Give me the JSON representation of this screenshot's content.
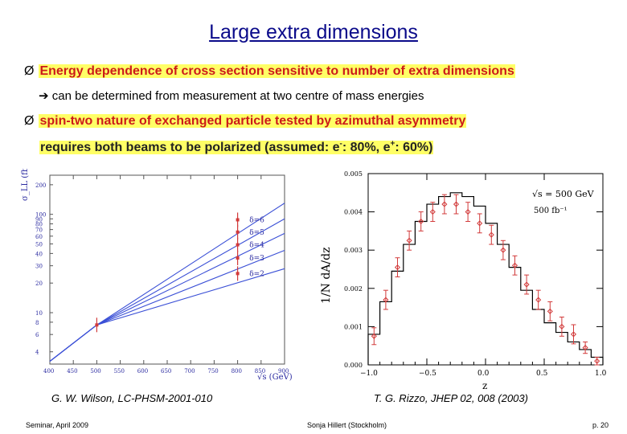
{
  "slide": {
    "title": "Large extra dimensions",
    "bullet1": "Energy dependence of cross section sensitive to number of extra dimensions",
    "arrow_line": "can be determined from measurement at two centre of mass energies",
    "bullet2": "spin-two nature of exchanged particle tested by azimuthal asymmetry",
    "requires_prefix": "requires both beams to be polarized (assumed: e",
    "requires_minus": "-",
    "requires_mid": ": 80%, e",
    "requires_plus": "+",
    "requires_suffix": ": 60%)",
    "bullet_marker": "Ø",
    "arrow_glyph": "➔"
  },
  "captions": {
    "left": "G. W. Wilson, LC-PHSM-2001-010",
    "right": "T. G. Rizzo, JHEP 02, 008 (2003)"
  },
  "footer": {
    "left": "Seminar, April 2009",
    "center": "Sonja Hillert (Stockholm)",
    "right": "p. 20"
  },
  "chart_data": [
    {
      "type": "line",
      "xlabel": "√s (GeV)",
      "ylabel": "σ_LL (fb)",
      "xlim": [
        400,
        900
      ],
      "x_ticks": [
        "400",
        "450",
        "500",
        "550",
        "600",
        "650",
        "700",
        "750",
        "800",
        "850",
        "900"
      ],
      "y_ticks": [
        "200",
        "100",
        "90",
        "80",
        "70",
        "60",
        "50",
        "40",
        "30",
        "20",
        "10",
        "8",
        "6",
        "4"
      ],
      "series": [
        {
          "name": "δ=6",
          "x": [
            400,
            500,
            900
          ],
          "y": [
            3.2,
            7.5,
            130
          ]
        },
        {
          "name": "δ=5",
          "x": [
            400,
            500,
            900
          ],
          "y": [
            3.2,
            7.5,
            90
          ]
        },
        {
          "name": "δ=4",
          "x": [
            400,
            500,
            900
          ],
          "y": [
            3.2,
            7.5,
            64
          ]
        },
        {
          "name": "δ=3",
          "x": [
            400,
            500,
            900
          ],
          "y": [
            3.2,
            7.5,
            43
          ]
        },
        {
          "name": "δ=2",
          "x": [
            400,
            500,
            900
          ],
          "y": [
            3.2,
            7.5,
            28
          ]
        }
      ],
      "markers": [
        {
          "x": 500,
          "y": 7.5
        },
        {
          "x": 800,
          "y": 88
        },
        {
          "x": 800,
          "y": 66
        },
        {
          "x": 800,
          "y": 49
        },
        {
          "x": 800,
          "y": 36
        },
        {
          "x": 800,
          "y": 25
        }
      ]
    },
    {
      "type": "scatter",
      "xlabel": "z",
      "ylabel": "1/N dA/dz",
      "xlim": [
        -1.0,
        1.0
      ],
      "ylim": [
        0,
        0.005
      ],
      "x_ticks": [
        "−1.0",
        "−0.5",
        "0.0",
        "0.5",
        "1.0"
      ],
      "y_ticks": [
        "0.000",
        "0.001",
        "0.002",
        "0.003",
        "0.004",
        "0.005"
      ],
      "annotations": [
        "√s = 500 GeV",
        "500 fb⁻¹"
      ],
      "points": [
        {
          "x": -0.95,
          "y": 0.00075,
          "err": 0.00022
        },
        {
          "x": -0.85,
          "y": 0.0017,
          "err": 0.00025
        },
        {
          "x": -0.75,
          "y": 0.00255,
          "err": 0.00025
        },
        {
          "x": -0.65,
          "y": 0.00325,
          "err": 0.00025
        },
        {
          "x": -0.55,
          "y": 0.00375,
          "err": 0.00025
        },
        {
          "x": -0.45,
          "y": 0.004,
          "err": 0.00025
        },
        {
          "x": -0.35,
          "y": 0.0042,
          "err": 0.00025
        },
        {
          "x": -0.25,
          "y": 0.0042,
          "err": 0.00025
        },
        {
          "x": -0.15,
          "y": 0.004,
          "err": 0.00025
        },
        {
          "x": -0.05,
          "y": 0.0037,
          "err": 0.00025
        },
        {
          "x": 0.05,
          "y": 0.0034,
          "err": 0.00025
        },
        {
          "x": 0.15,
          "y": 0.003,
          "err": 0.00025
        },
        {
          "x": 0.25,
          "y": 0.0026,
          "err": 0.00025
        },
        {
          "x": 0.35,
          "y": 0.0021,
          "err": 0.00025
        },
        {
          "x": 0.45,
          "y": 0.0017,
          "err": 0.00025
        },
        {
          "x": 0.55,
          "y": 0.0014,
          "err": 0.00025
        },
        {
          "x": 0.65,
          "y": 0.001,
          "err": 0.00025
        },
        {
          "x": 0.75,
          "y": 0.0008,
          "err": 0.00025
        },
        {
          "x": 0.85,
          "y": 0.00045,
          "err": 0.00015
        },
        {
          "x": 0.95,
          "y": 0.0001,
          "err": 0.0001
        }
      ],
      "histogram": {
        "edges": [
          -1.0,
          -0.9,
          -0.8,
          -0.7,
          -0.6,
          -0.5,
          -0.4,
          -0.3,
          -0.2,
          -0.1,
          0.0,
          0.1,
          0.2,
          0.3,
          0.4,
          0.5,
          0.6,
          0.7,
          0.8,
          0.9,
          1.0
        ],
        "values": [
          0.0008,
          0.00165,
          0.00245,
          0.00315,
          0.00375,
          0.0042,
          0.0044,
          0.0045,
          0.0044,
          0.00415,
          0.0037,
          0.00315,
          0.00255,
          0.00195,
          0.00145,
          0.0011,
          0.00085,
          0.0006,
          0.0004,
          0.0002
        ]
      }
    }
  ]
}
